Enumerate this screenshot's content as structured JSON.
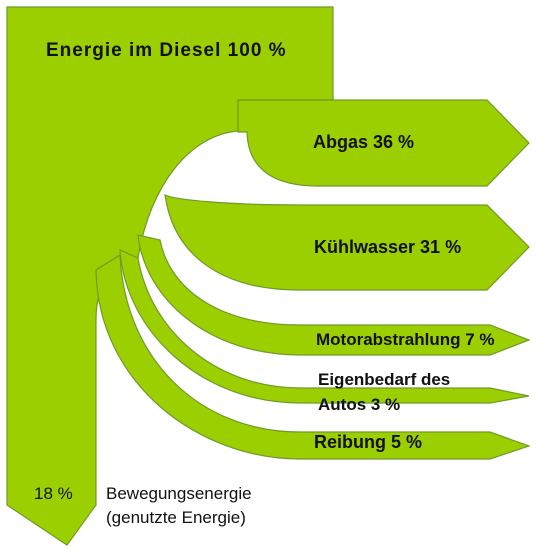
{
  "diagram": {
    "type": "sankey",
    "fill_color": "#9ccf00",
    "stroke_color": "#6f9a2a",
    "source": {
      "label": "Energie im Diesel 100 %",
      "value": 100
    },
    "flows": [
      {
        "name": "abgas",
        "label": "Abgas 36 %",
        "value": 36
      },
      {
        "name": "kuehlwasser",
        "label": "Kühlwasser 31 %",
        "value": 31
      },
      {
        "name": "motorabstrahlung",
        "label": "Motorabstrahlung 7 %",
        "value": 7
      },
      {
        "name": "eigenbedarf",
        "label_line1": "Eigenbedarf des",
        "label_line2": "Autos 3 %",
        "value": 3
      },
      {
        "name": "reibung",
        "label": "Reibung 5 %",
        "value": 5
      }
    ],
    "output": {
      "value_label": "18 %",
      "label_line1": "Bewegungsenergie",
      "label_line2": "(genutzte Energie)",
      "value": 18
    }
  }
}
